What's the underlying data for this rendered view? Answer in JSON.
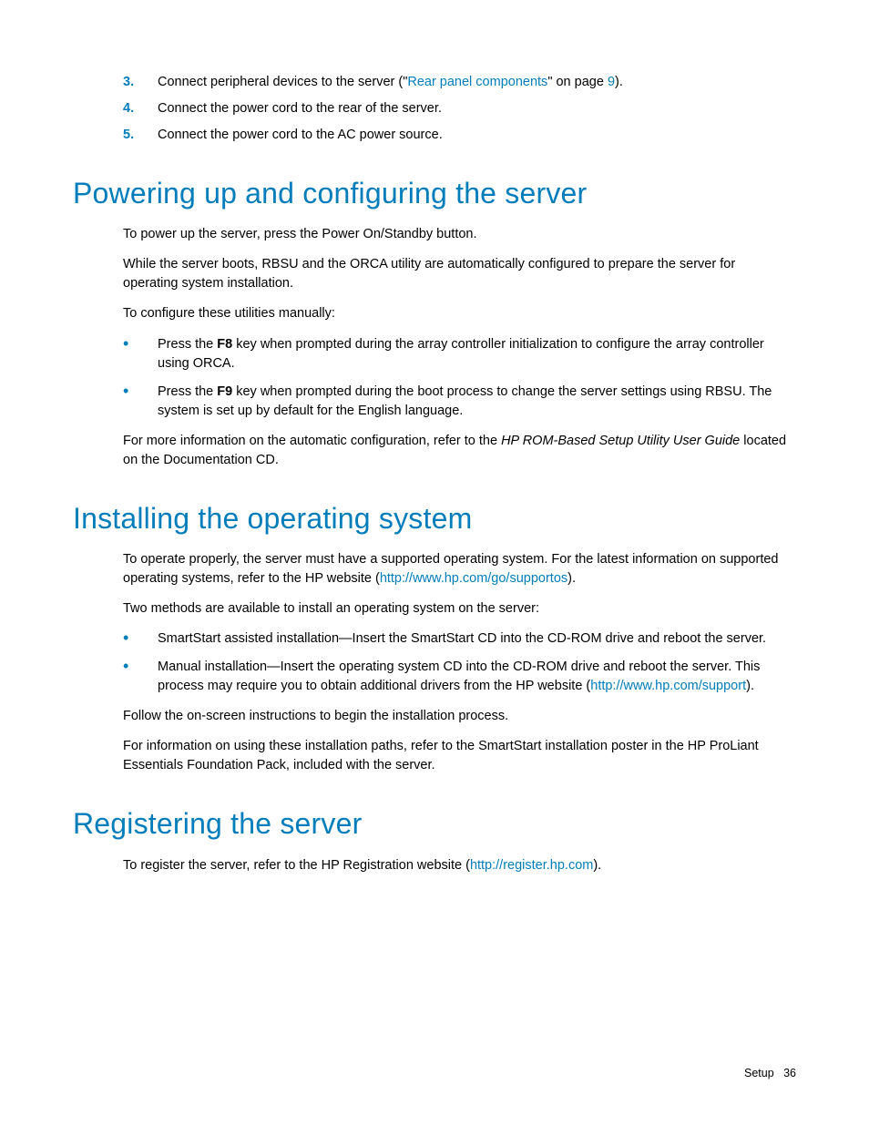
{
  "colors": {
    "accent": "#007dba",
    "text": "#000000",
    "background": "#ffffff"
  },
  "typography": {
    "body_font": "Arial",
    "body_size_pt": 11,
    "heading_size_pt": 24,
    "heading_weight": 400,
    "heading_color": "#007dba"
  },
  "intro_list": {
    "items": [
      {
        "num": "3.",
        "text_before": "Connect peripheral devices to the server (\"",
        "link_text": "Rear panel components",
        "text_mid": "\" on page ",
        "page_ref": "9",
        "text_after": ")."
      },
      {
        "num": "4.",
        "text": "Connect the power cord to the rear of the server."
      },
      {
        "num": "5.",
        "text": "Connect the power cord to the AC power source."
      }
    ]
  },
  "section1": {
    "heading": "Powering up and configuring the server",
    "p1": "To power up the server, press the Power On/Standby button.",
    "p2": "While the server boots, RBSU and the ORCA utility are automatically configured to prepare the server for operating system installation.",
    "p3": "To configure these utilities manually:",
    "bullets": [
      {
        "pre": "Press the ",
        "bold": "F8",
        "post": " key when prompted during the array controller initialization to configure the array controller using ORCA."
      },
      {
        "pre": "Press the ",
        "bold": "F9",
        "post": " key when prompted during the boot process to change the server settings using RBSU. The system is set up by default for the English language."
      }
    ],
    "p4_pre": "For more information on the automatic configuration, refer to the ",
    "p4_italic": "HP ROM-Based Setup Utility User Guide",
    "p4_post": " located on the Documentation CD."
  },
  "section2": {
    "heading": "Installing the operating system",
    "p1_pre": "To operate properly, the server must have a supported operating system. For the latest information on supported operating systems, refer to the HP website (",
    "p1_link": "http://www.hp.com/go/supportos",
    "p1_post": ").",
    "p2": "Two methods are available to install an operating system on the server:",
    "bullets": [
      {
        "text": "SmartStart assisted installation—Insert the SmartStart CD into the CD-ROM drive and reboot the server."
      },
      {
        "pre": "Manual installation—Insert the operating system CD into the CD-ROM drive and reboot the server. This process may require you to obtain additional drivers from the HP website (",
        "link": "http://www.hp.com/support",
        "post": ")."
      }
    ],
    "p3": "Follow the on-screen instructions to begin the installation process.",
    "p4": "For information on using these installation paths, refer to the SmartStart installation poster in the HP ProLiant Essentials Foundation Pack, included with the server."
  },
  "section3": {
    "heading": "Registering the server",
    "p1_pre": "To register the server, refer to the HP Registration website (",
    "p1_link": "http://register.hp.com",
    "p1_post": ")."
  },
  "footer": {
    "section": "Setup",
    "page": "36"
  }
}
